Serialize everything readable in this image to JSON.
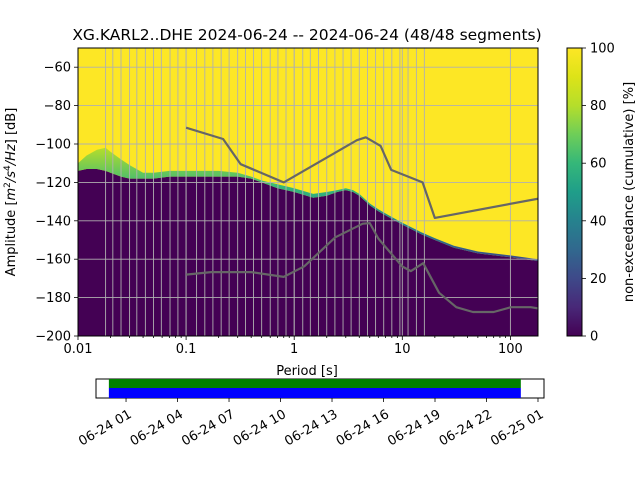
{
  "chart_data": [
    {
      "type": "heatmap",
      "title": "XG.KARL2..DHE   2024-06-24 -- 2024-06-24  (48/48 segments)",
      "xlabel": "Period [s]",
      "ylabel_prefix": "Amplitude [",
      "ylabel_unit_base": "m",
      "ylabel_unit_exp1": "2",
      "ylabel_unit_mid": "/s",
      "ylabel_unit_exp2": "4",
      "ylabel_unit_tail": "/Hz",
      "ylabel_suffix": "] [dB]",
      "x_scale": "log",
      "xlim": [
        0.01,
        180
      ],
      "ylim": [
        -200,
        -50
      ],
      "x_ticks": [
        {
          "value": 0.01,
          "label": "0.01"
        },
        {
          "value": 0.1,
          "label": "0.1"
        },
        {
          "value": 1,
          "label": "1"
        },
        {
          "value": 10,
          "label": "10"
        },
        {
          "value": 100,
          "label": "100"
        }
      ],
      "y_ticks": [
        {
          "value": -60,
          "label": "−60"
        },
        {
          "value": -80,
          "label": "−80"
        },
        {
          "value": -100,
          "label": "−100"
        },
        {
          "value": -120,
          "label": "−120"
        },
        {
          "value": -140,
          "label": "−140"
        },
        {
          "value": -160,
          "label": "−160"
        },
        {
          "value": -180,
          "label": "−180"
        },
        {
          "value": -200,
          "label": "−200"
        }
      ],
      "grid": true,
      "vertical_grid_periods": [
        0.1,
        0.125,
        0.149,
        0.177,
        0.211,
        0.25,
        0.3,
        0.354,
        0.42,
        0.5,
        0.6,
        0.707,
        0.84,
        1.0,
        1.2,
        1.41,
        1.68,
        2.0,
        2.38,
        2.83,
        3.36,
        4.0,
        4.76,
        5.66,
        6.73,
        8.0,
        9.5,
        11.3,
        13.5,
        16.0,
        0.018,
        0.021,
        0.025,
        0.03,
        0.035,
        0.042,
        0.05,
        0.059,
        0.071,
        0.084
      ],
      "colormap": "viridis",
      "noise_upper_edge": {
        "period": [
          0.01,
          0.012,
          0.015,
          0.018,
          0.02,
          0.025,
          0.03,
          0.04,
          0.05,
          0.07,
          0.1,
          0.15,
          0.2,
          0.3,
          0.4,
          0.5,
          0.7,
          1.0,
          1.5,
          2.0,
          2.5,
          3.0,
          3.5,
          4.0,
          5.0,
          6.0,
          8.0,
          10.0,
          15.0,
          20.0,
          30.0,
          50.0,
          100.0,
          180.0
        ],
        "db": [
          -110,
          -106,
          -103,
          -102,
          -104,
          -108,
          -111,
          -115,
          -115,
          -114,
          -114,
          -114,
          -114,
          -115,
          -117,
          -119,
          -121,
          -123,
          -126,
          -125,
          -124,
          -123,
          -124,
          -126,
          -131,
          -134,
          -138,
          -141,
          -146,
          -149,
          -153,
          -156,
          -158,
          -160
        ]
      },
      "noise_lower_edge": {
        "period": [
          0.01,
          0.012,
          0.015,
          0.018,
          0.02,
          0.025,
          0.03,
          0.04,
          0.05,
          0.07,
          0.1,
          0.15,
          0.2,
          0.3,
          0.4,
          0.5,
          0.7,
          1.0,
          1.5,
          2.0,
          2.5,
          3.0,
          3.5,
          4.0,
          5.0,
          6.0,
          8.0,
          10.0,
          15.0,
          20.0,
          30.0,
          50.0,
          100.0,
          180.0
        ],
        "db": [
          -114,
          -113,
          -113,
          -114,
          -115,
          -117,
          -118,
          -118,
          -118,
          -117,
          -117,
          -117,
          -117,
          -117,
          -118,
          -120,
          -123,
          -125,
          -128,
          -127,
          -125,
          -124,
          -125,
          -127,
          -132,
          -135,
          -139,
          -142,
          -147,
          -150,
          -154,
          -157,
          -159,
          -161
        ]
      },
      "reference_curves": [
        {
          "name": "",
          "color": "#666666",
          "period": [
            0.1,
            0.22,
            0.32,
            0.8,
            3.8,
            4.6,
            6.3,
            7.9,
            15.4,
            20,
            180
          ],
          "db": [
            -91.5,
            -97.4,
            -110.5,
            -120,
            -98,
            -96.5,
            -101,
            -113.5,
            -120,
            -138.5,
            -128.5
          ]
        },
        {
          "name": "",
          "color": "#666666",
          "period": [
            0.1,
            0.17,
            0.4,
            0.8,
            1.24,
            2.4,
            4.3,
            5,
            6,
            10,
            12,
            15.6,
            21.9,
            31.6,
            45,
            70,
            101,
            154,
            180
          ],
          "db": [
            -168,
            -166.7,
            -166.7,
            -169.2,
            -163.7,
            -148.6,
            -141.5,
            -141.2,
            -149.2,
            -163.8,
            -166.2,
            -162.1,
            -177.5,
            -185,
            -187.5,
            -187.5,
            -185,
            -185,
            -185.6
          ]
        }
      ]
    },
    {
      "type": "colorbar",
      "label": "non-exceedance (cumulative) [%]",
      "range": [
        0,
        100
      ],
      "ticks": [
        {
          "value": 0,
          "label": "0"
        },
        {
          "value": 20,
          "label": "20"
        },
        {
          "value": 40,
          "label": "40"
        },
        {
          "value": 60,
          "label": "60"
        },
        {
          "value": 80,
          "label": "80"
        },
        {
          "value": 100,
          "label": "100"
        }
      ]
    },
    {
      "type": "timeline",
      "start": "2024-06-24 00:00",
      "end": "2024-06-25 01:00",
      "data_start": "2024-06-24 00:00",
      "data_end": "2024-06-25 00:00",
      "colors": {
        "segments": "#008000",
        "data": "#0000ff"
      },
      "ticks": [
        {
          "hours": 1,
          "label": "06-24 01"
        },
        {
          "hours": 4,
          "label": "06-24 04"
        },
        {
          "hours": 7,
          "label": "06-24 07"
        },
        {
          "hours": 10,
          "label": "06-24 10"
        },
        {
          "hours": 13,
          "label": "06-24 13"
        },
        {
          "hours": 16,
          "label": "06-24 16"
        },
        {
          "hours": 19,
          "label": "06-24 19"
        },
        {
          "hours": 22,
          "label": "06-24 22"
        },
        {
          "hours": 25,
          "label": "06-25 01"
        }
      ]
    }
  ]
}
